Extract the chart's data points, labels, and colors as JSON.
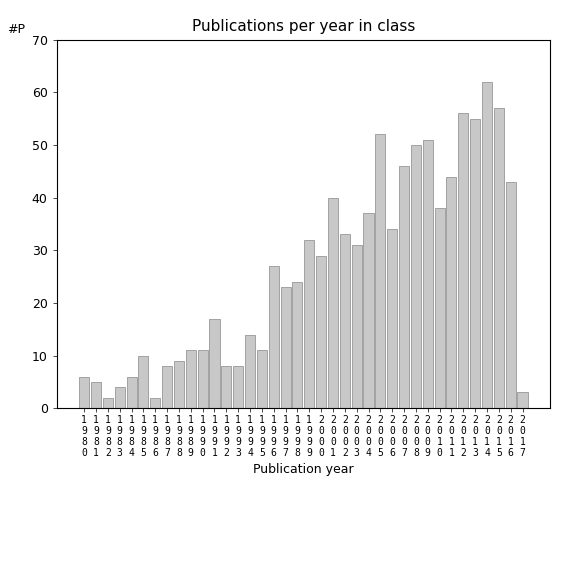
{
  "title": "Publications per year in class",
  "xlabel": "Publication year",
  "ylabel": "#P",
  "ylim": [
    0,
    70
  ],
  "yticks": [
    0,
    10,
    20,
    30,
    40,
    50,
    60,
    70
  ],
  "bar_color": "#c8c8c8",
  "bar_edgecolor": "#888888",
  "categories": [
    "1980",
    "1981",
    "1982",
    "1983",
    "1984",
    "1985",
    "1986",
    "1987",
    "1988",
    "1989",
    "1990",
    "1991",
    "1992",
    "1993",
    "1994",
    "1995",
    "1996",
    "1997",
    "1998",
    "1999",
    "2000",
    "2001",
    "2002",
    "2003",
    "2004",
    "2005",
    "2006",
    "2007",
    "2008",
    "2009",
    "2010",
    "2011",
    "2012",
    "2013",
    "2014",
    "2015",
    "2016",
    "2017"
  ],
  "values": [
    6,
    5,
    2,
    4,
    6,
    10,
    2,
    8,
    9,
    11,
    11,
    17,
    8,
    8,
    14,
    11,
    27,
    23,
    24,
    32,
    29,
    40,
    33,
    31,
    37,
    52,
    34,
    46,
    50,
    51,
    38,
    44,
    56,
    55,
    62,
    57,
    43,
    3
  ],
  "figsize": [
    5.67,
    5.67
  ],
  "dpi": 100,
  "title_fontsize": 11,
  "axis_label_fontsize": 9,
  "tick_fontsize": 9,
  "xtick_fontsize": 7
}
